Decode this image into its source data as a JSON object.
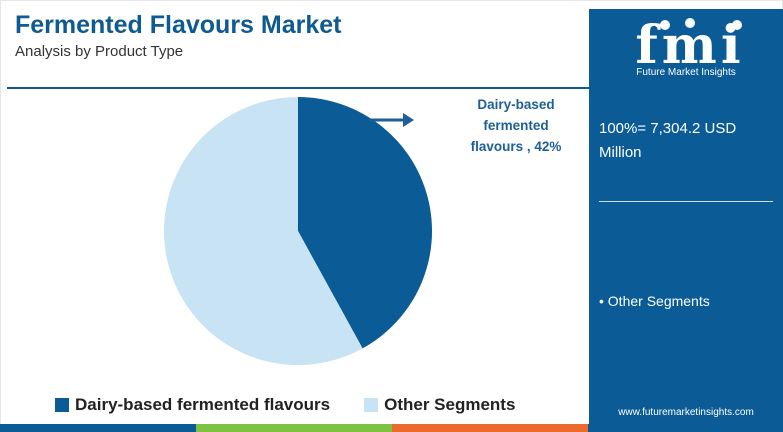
{
  "header": {
    "title": "Fermented Flavours Market",
    "subtitle": "Analysis by Product Type"
  },
  "chart_data": {
    "type": "pie",
    "title": "",
    "slices": [
      {
        "label": "Dairy-based fermented flavours",
        "value": 42,
        "color": "#0b5b97"
      },
      {
        "label": "Other Segments",
        "value": 58,
        "color": "#c8e3f3"
      }
    ],
    "annotation": "Dairy-based fermented flavours , 42%",
    "legend": "bottom"
  },
  "callout": {
    "line1": "Dairy-based",
    "line2": "fermented",
    "line3": "flavours , 42%"
  },
  "legend": {
    "items": [
      {
        "label": "Dairy-based fermented flavours",
        "color": "#0b5b97"
      },
      {
        "label": "Other Segments",
        "color": "#c8e3f3"
      }
    ]
  },
  "panel": {
    "logo_text": "fmi",
    "logo_subtitle": "Future Market Insights",
    "total": "100%= 7,304.2 USD Million",
    "other_label": "• Other Segments",
    "url": "www.futuremarketinsights.com",
    "background_color": "#0b5b97"
  },
  "bottom_bar_colors": [
    "#0b5b97",
    "#7dc242",
    "#ec6a2a",
    "#0b5b97"
  ]
}
